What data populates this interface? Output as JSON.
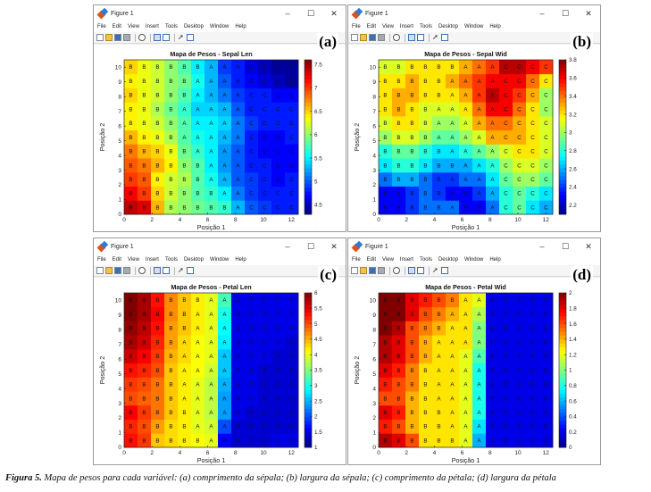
{
  "window_chrome": {
    "title": "Figure 1",
    "controls": [
      "–",
      "☐",
      "✕"
    ],
    "menu": [
      "File",
      "Edit",
      "View",
      "Insert",
      "Tools",
      "Desktop",
      "Window",
      "Help"
    ],
    "toolbar_icons": [
      "new-file-icon",
      "open-folder-icon",
      "save-icon",
      "print-icon",
      "zoom-icon",
      "dock-icon",
      "property-inspector-icon",
      "pointer-arrow-icon",
      "legend-icon"
    ]
  },
  "panels": [
    {
      "label": "(a)",
      "title": "Mapa de Pesos - Sepal Len",
      "xlabel": "Posição 1",
      "ylabel": "Posição 2",
      "colorbar_ticks": [
        "7.5",
        "7",
        "6.5",
        "6",
        "5.5",
        "5",
        "4.5"
      ]
    },
    {
      "label": "(b)",
      "title": "Mapa de Pesos - Sepal Wid",
      "xlabel": "Posição 1",
      "ylabel": "Posição 2",
      "colorbar_ticks": [
        "3.8",
        "3.6",
        "3.4",
        "3.2",
        "3",
        "2.8",
        "2.6",
        "2.4",
        "2.2"
      ]
    },
    {
      "label": "(c)",
      "title": "Mapa de Pesos - Petal Len",
      "xlabel": "Posição 1",
      "ylabel": "Posição 2",
      "colorbar_ticks": [
        "6",
        "5.5",
        "5",
        "4.5",
        "4",
        "3.5",
        "3",
        "2.5",
        "2",
        "1.5",
        "1"
      ]
    },
    {
      "label": "(d)",
      "title": "Mapa de Pesos - Petal Wid",
      "xlabel": "Posição 1",
      "ylabel": "Posição 2",
      "colorbar_ticks": [
        "2",
        "1.8",
        "1.6",
        "1.4",
        "1.2",
        "1",
        "0.8",
        "0.6",
        "0.4",
        "0.2",
        "0"
      ]
    }
  ],
  "caption": {
    "prefix": "Figura 5.",
    "text": " Mapa de pesos para cada variável: (a) comprimento da sépala; (b) largura da sépala; (c) comprimento da pétala; (d) largura da pétala"
  },
  "chart_data": [
    {
      "type": "heatmap",
      "title": "Mapa de Pesos - Sepal Len",
      "xlabel": "Posição 1",
      "ylabel": "Posição 2",
      "x_ticks": [
        0,
        2,
        4,
        6,
        8,
        10,
        12
      ],
      "y_ticks": [
        0,
        1,
        2,
        3,
        4,
        5,
        6,
        7,
        8,
        9,
        10
      ],
      "xlim": [
        0,
        12.5
      ],
      "ylim": [
        0,
        10.5
      ],
      "colorbar_range": [
        4.3,
        7.6
      ],
      "colormap": "jet",
      "grid": [
        [
          7.4,
          7.3,
          6.6,
          6.1,
          6.0,
          5.9,
          5.8,
          5.7,
          5.3,
          5.0,
          4.9,
          4.8,
          4.8
        ],
        [
          7.2,
          7.0,
          6.5,
          6.2,
          6.0,
          5.8,
          5.7,
          5.5,
          5.1,
          4.9,
          4.8,
          4.8,
          4.8
        ],
        [
          7.0,
          6.9,
          6.4,
          6.2,
          6.1,
          5.8,
          5.6,
          5.3,
          5.0,
          4.9,
          4.8,
          4.7,
          4.8
        ],
        [
          6.9,
          6.8,
          6.6,
          6.4,
          6.0,
          5.8,
          5.5,
          5.2,
          5.0,
          4.8,
          4.8,
          4.7,
          4.7
        ],
        [
          6.8,
          6.6,
          6.5,
          6.3,
          5.9,
          5.7,
          5.5,
          5.2,
          5.0,
          4.8,
          4.7,
          4.7,
          4.7
        ],
        [
          6.6,
          6.4,
          6.3,
          6.1,
          5.8,
          5.6,
          5.5,
          5.3,
          5.1,
          4.8,
          4.7,
          4.7,
          4.8
        ],
        [
          6.4,
          6.3,
          6.2,
          6.0,
          5.8,
          5.5,
          5.5,
          5.4,
          5.1,
          4.9,
          4.8,
          4.8,
          4.8
        ],
        [
          6.4,
          6.3,
          6.1,
          5.9,
          5.7,
          5.4,
          5.4,
          5.3,
          5.0,
          4.8,
          4.8,
          4.8,
          4.8
        ],
        [
          6.5,
          6.3,
          6.2,
          6.0,
          5.8,
          5.5,
          5.3,
          5.1,
          4.9,
          4.8,
          4.8,
          4.7,
          4.7
        ],
        [
          6.4,
          6.3,
          6.2,
          6.0,
          5.9,
          5.6,
          5.3,
          5.0,
          4.8,
          4.7,
          4.6,
          4.5,
          4.4
        ],
        [
          6.5,
          6.3,
          6.2,
          6.0,
          5.8,
          5.5,
          5.3,
          4.9,
          4.8,
          4.6,
          4.5,
          4.4,
          4.4
        ]
      ],
      "point_labels": [
        "BBBBBBBBACCCC",
        "BBBBBBBAACCCC",
        "BBBBBBAAACCCC",
        "BBBBBBAAACCCC",
        "BBBBBAAAACCCC",
        "BBBBAAAAACCCC",
        "BBBBAAAAACCCC",
        "BBBBAAAAACCCC",
        "BBBBBAAAACCCC",
        "BBBBBAAAACCCC",
        "BBBBBBAAACCCC"
      ]
    },
    {
      "type": "heatmap",
      "title": "Mapa de Pesos - Sepal Wid",
      "xlabel": "Posição 1",
      "ylabel": "Posição 2",
      "x_ticks": [
        0,
        2,
        4,
        6,
        8,
        10,
        12
      ],
      "y_ticks": [
        0,
        1,
        2,
        3,
        4,
        5,
        6,
        7,
        8,
        9,
        10
      ],
      "xlim": [
        0,
        12.5
      ],
      "ylim": [
        0,
        10.5
      ],
      "colorbar_range": [
        2.1,
        3.8
      ],
      "colormap": "jet",
      "grid": [
        [
          2.3,
          2.3,
          2.4,
          2.5,
          2.5,
          2.5,
          2.3,
          2.3,
          2.5,
          2.8,
          2.9,
          2.7,
          2.6
        ],
        [
          2.3,
          2.3,
          2.4,
          2.5,
          2.4,
          2.3,
          2.3,
          2.4,
          2.6,
          2.8,
          2.9,
          2.8,
          2.7
        ],
        [
          2.5,
          2.6,
          2.6,
          2.5,
          2.4,
          2.4,
          2.5,
          2.5,
          2.7,
          2.9,
          3.0,
          3.0,
          2.9
        ],
        [
          2.7,
          2.8,
          2.8,
          2.7,
          2.6,
          2.6,
          2.6,
          2.7,
          2.8,
          3.0,
          3.1,
          3.1,
          3.0
        ],
        [
          2.8,
          2.9,
          2.9,
          2.8,
          2.7,
          2.7,
          2.8,
          2.9,
          3.0,
          3.1,
          3.2,
          3.2,
          3.1
        ],
        [
          3.0,
          3.1,
          3.1,
          3.0,
          2.9,
          2.9,
          3.0,
          3.1,
          3.3,
          3.3,
          3.3,
          3.2,
          3.1
        ],
        [
          3.1,
          3.2,
          3.2,
          3.1,
          3.0,
          3.0,
          3.1,
          3.3,
          3.4,
          3.4,
          3.3,
          3.2,
          3.1
        ],
        [
          3.2,
          3.3,
          3.2,
          3.1,
          3.1,
          3.1,
          3.2,
          3.4,
          3.6,
          3.6,
          3.4,
          3.2,
          3.0
        ],
        [
          3.2,
          3.3,
          3.3,
          3.2,
          3.2,
          3.2,
          3.3,
          3.5,
          3.7,
          3.6,
          3.5,
          3.3,
          3.0
        ],
        [
          3.2,
          3.2,
          3.3,
          3.2,
          3.2,
          3.3,
          3.4,
          3.5,
          3.6,
          3.6,
          3.6,
          3.4,
          3.2
        ],
        [
          3.1,
          3.1,
          3.2,
          3.2,
          3.2,
          3.2,
          3.3,
          3.4,
          3.5,
          3.7,
          3.7,
          3.6,
          3.5
        ]
      ],
      "point_labels": [
        "BBBBBAAAACCCC",
        "BBBBBAAAACCCC",
        "BBBBBAAAACCCC",
        "BBBBBBAAACCCC",
        "BBBBBAAAACCCC",
        "BBBBAAAAACCCC",
        "BBBBAAAAACCCC",
        "BBBBAAAAACCCC",
        "BBBBBAAAACCCC",
        "BBBBBAAAACCCC",
        "BBBBBBAAACCCC"
      ]
    },
    {
      "type": "heatmap",
      "title": "Mapa de Pesos - Petal Len",
      "xlabel": "Posição 1",
      "ylabel": "Posição 2",
      "x_ticks": [
        0,
        2,
        4,
        6,
        8,
        10,
        12
      ],
      "y_ticks": [
        0,
        1,
        2,
        3,
        4,
        5,
        6,
        7,
        8,
        9,
        10
      ],
      "xlim": [
        0,
        12.5
      ],
      "ylim": [
        0,
        10.5
      ],
      "colorbar_range": [
        1.0,
        6.0
      ],
      "colormap": "jet",
      "grid": [
        [
          5.3,
          5.1,
          4.4,
          4.3,
          4.2,
          4.1,
          4.0,
          1.6,
          1.4,
          1.4,
          1.4,
          1.5,
          1.5
        ],
        [
          5.2,
          5.0,
          4.6,
          4.3,
          4.2,
          4.0,
          3.9,
          2.0,
          1.4,
          1.4,
          1.4,
          1.4,
          1.4
        ],
        [
          5.4,
          5.1,
          4.8,
          4.4,
          4.2,
          4.0,
          3.8,
          2.4,
          1.5,
          1.4,
          1.4,
          1.4,
          1.4
        ],
        [
          5.0,
          4.9,
          4.8,
          4.4,
          4.2,
          4.0,
          3.8,
          2.4,
          1.5,
          1.5,
          1.4,
          1.4,
          1.4
        ],
        [
          5.1,
          5.0,
          4.8,
          4.4,
          4.2,
          4.0,
          3.8,
          2.5,
          1.5,
          1.5,
          1.4,
          1.4,
          1.4
        ],
        [
          5.3,
          5.2,
          5.0,
          4.4,
          4.2,
          4.1,
          3.9,
          2.6,
          1.5,
          1.5,
          1.4,
          1.4,
          1.4
        ],
        [
          5.6,
          5.4,
          5.1,
          4.5,
          4.3,
          4.1,
          4.0,
          2.6,
          1.5,
          1.5,
          1.5,
          1.4,
          1.4
        ],
        [
          5.8,
          5.6,
          5.2,
          4.6,
          4.3,
          4.1,
          4.0,
          2.8,
          1.5,
          1.5,
          1.5,
          1.5,
          1.4
        ],
        [
          5.9,
          5.7,
          5.3,
          4.6,
          4.4,
          4.2,
          4.0,
          2.9,
          1.5,
          1.5,
          1.5,
          1.5,
          1.5
        ],
        [
          6.1,
          5.8,
          5.4,
          4.7,
          4.4,
          4.2,
          4.0,
          3.0,
          1.5,
          1.5,
          1.5,
          1.5,
          1.5
        ],
        [
          6.0,
          5.8,
          5.3,
          4.7,
          4.4,
          4.2,
          4.0,
          3.2,
          1.5,
          1.5,
          1.5,
          1.5,
          1.5
        ]
      ],
      "point_labels": [
        "BBBBBBAAACCCC",
        "BBBBBAAAACCCC",
        "BBBBBAAAACCCC",
        "BBBBAAAAACCCC",
        "BBBBAAAAACCCC",
        "BBBBAAAAACCCC",
        "BBBBAAAAACCCC",
        "BBBBAAAAACCCC",
        "BBBBBAAAACCCC",
        "BBBBBAAAACCCC",
        "BBBBBBAAACCCC"
      ]
    },
    {
      "type": "heatmap",
      "title": "Mapa de Pesos - Petal Wid",
      "xlabel": "Posição 1",
      "ylabel": "Posição 2",
      "x_ticks": [
        0,
        2,
        4,
        6,
        8,
        10,
        12
      ],
      "y_ticks": [
        0,
        1,
        2,
        3,
        4,
        5,
        6,
        7,
        8,
        9,
        10
      ],
      "xlim": [
        0,
        12.5
      ],
      "ylim": [
        0,
        10.5
      ],
      "colorbar_range": [
        0,
        2.0
      ],
      "colormap": "jet",
      "grid": [
        [
          1.9,
          1.8,
          1.6,
          1.3,
          1.3,
          1.3,
          1.2,
          0.6,
          0.2,
          0.2,
          0.2,
          0.2,
          0.2
        ],
        [
          1.7,
          1.6,
          1.4,
          1.3,
          1.3,
          1.3,
          1.2,
          0.7,
          0.2,
          0.2,
          0.2,
          0.2,
          0.2
        ],
        [
          1.8,
          1.7,
          1.4,
          1.3,
          1.3,
          1.3,
          1.2,
          0.8,
          0.2,
          0.2,
          0.2,
          0.2,
          0.2
        ],
        [
          1.6,
          1.6,
          1.4,
          1.3,
          1.3,
          1.3,
          1.2,
          0.8,
          0.2,
          0.2,
          0.2,
          0.2,
          0.2
        ],
        [
          1.7,
          1.6,
          1.5,
          1.3,
          1.3,
          1.3,
          1.2,
          0.8,
          0.2,
          0.2,
          0.2,
          0.2,
          0.2
        ],
        [
          1.8,
          1.7,
          1.5,
          1.3,
          1.3,
          1.3,
          1.2,
          0.8,
          0.2,
          0.2,
          0.2,
          0.2,
          0.2
        ],
        [
          1.9,
          1.8,
          1.6,
          1.4,
          1.3,
          1.3,
          1.2,
          0.9,
          0.2,
          0.2,
          0.2,
          0.2,
          0.2
        ],
        [
          1.9,
          1.8,
          1.6,
          1.4,
          1.3,
          1.3,
          1.3,
          1.0,
          0.2,
          0.2,
          0.2,
          0.2,
          0.2
        ],
        [
          2.0,
          1.9,
          1.6,
          1.5,
          1.4,
          1.3,
          1.3,
          1.0,
          0.2,
          0.2,
          0.2,
          0.2,
          0.2
        ],
        [
          2.0,
          2.0,
          1.8,
          1.6,
          1.5,
          1.4,
          1.3,
          1.1,
          0.2,
          0.2,
          0.2,
          0.2,
          0.2
        ],
        [
          2.0,
          2.0,
          1.8,
          1.7,
          1.6,
          1.5,
          1.3,
          1.2,
          0.2,
          0.2,
          0.2,
          0.2,
          0.2
        ]
      ],
      "point_labels": [
        "BBBBBBAAACCCC",
        "BBBBBAAAACCCC",
        "BBBBBAAAACCCC",
        "BBBBAAAAACCCC",
        "BBBBAAAAACCCC",
        "BBBBAAAAACCCC",
        "BBBBAAAAACCCC",
        "BBBBAAAAACCCC",
        "BBBBBAAAACCCC",
        "BBBBBAAAACCCC",
        "BBBBBBAAACCCC"
      ]
    }
  ]
}
